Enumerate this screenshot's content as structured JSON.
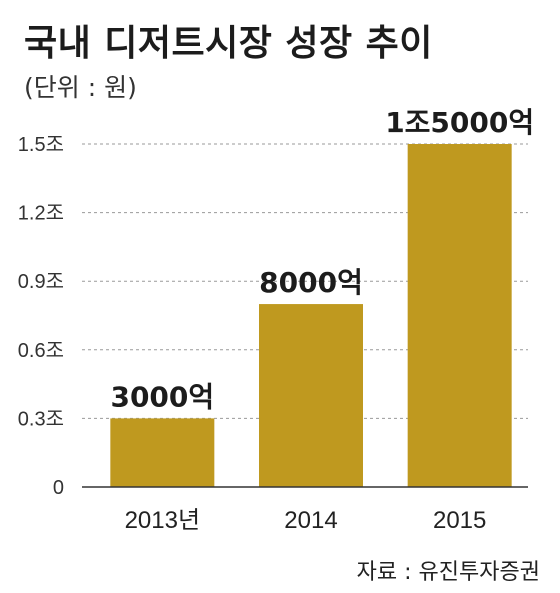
{
  "chart_data": {
    "type": "bar",
    "title": "국내 디저트시장 성장 추이",
    "subtitle": "(단위 : 원)",
    "source": "자료 : 유진투자증권",
    "categories": [
      "2013년",
      "2014",
      "2015"
    ],
    "values": [
      0.3,
      0.8,
      1.5
    ],
    "data_labels": [
      "3000억",
      "8000억",
      "1조5000억"
    ],
    "ylim": [
      0,
      1.5
    ],
    "yticks": [
      0,
      0.3,
      0.6,
      0.9,
      1.2,
      1.5
    ],
    "ytick_labels": [
      "0",
      "0.3조",
      "0.6조",
      "0.9조",
      "1.2조",
      "1.5조"
    ],
    "grid": "horizontal-dashed",
    "bar_color": "#bf991f"
  }
}
